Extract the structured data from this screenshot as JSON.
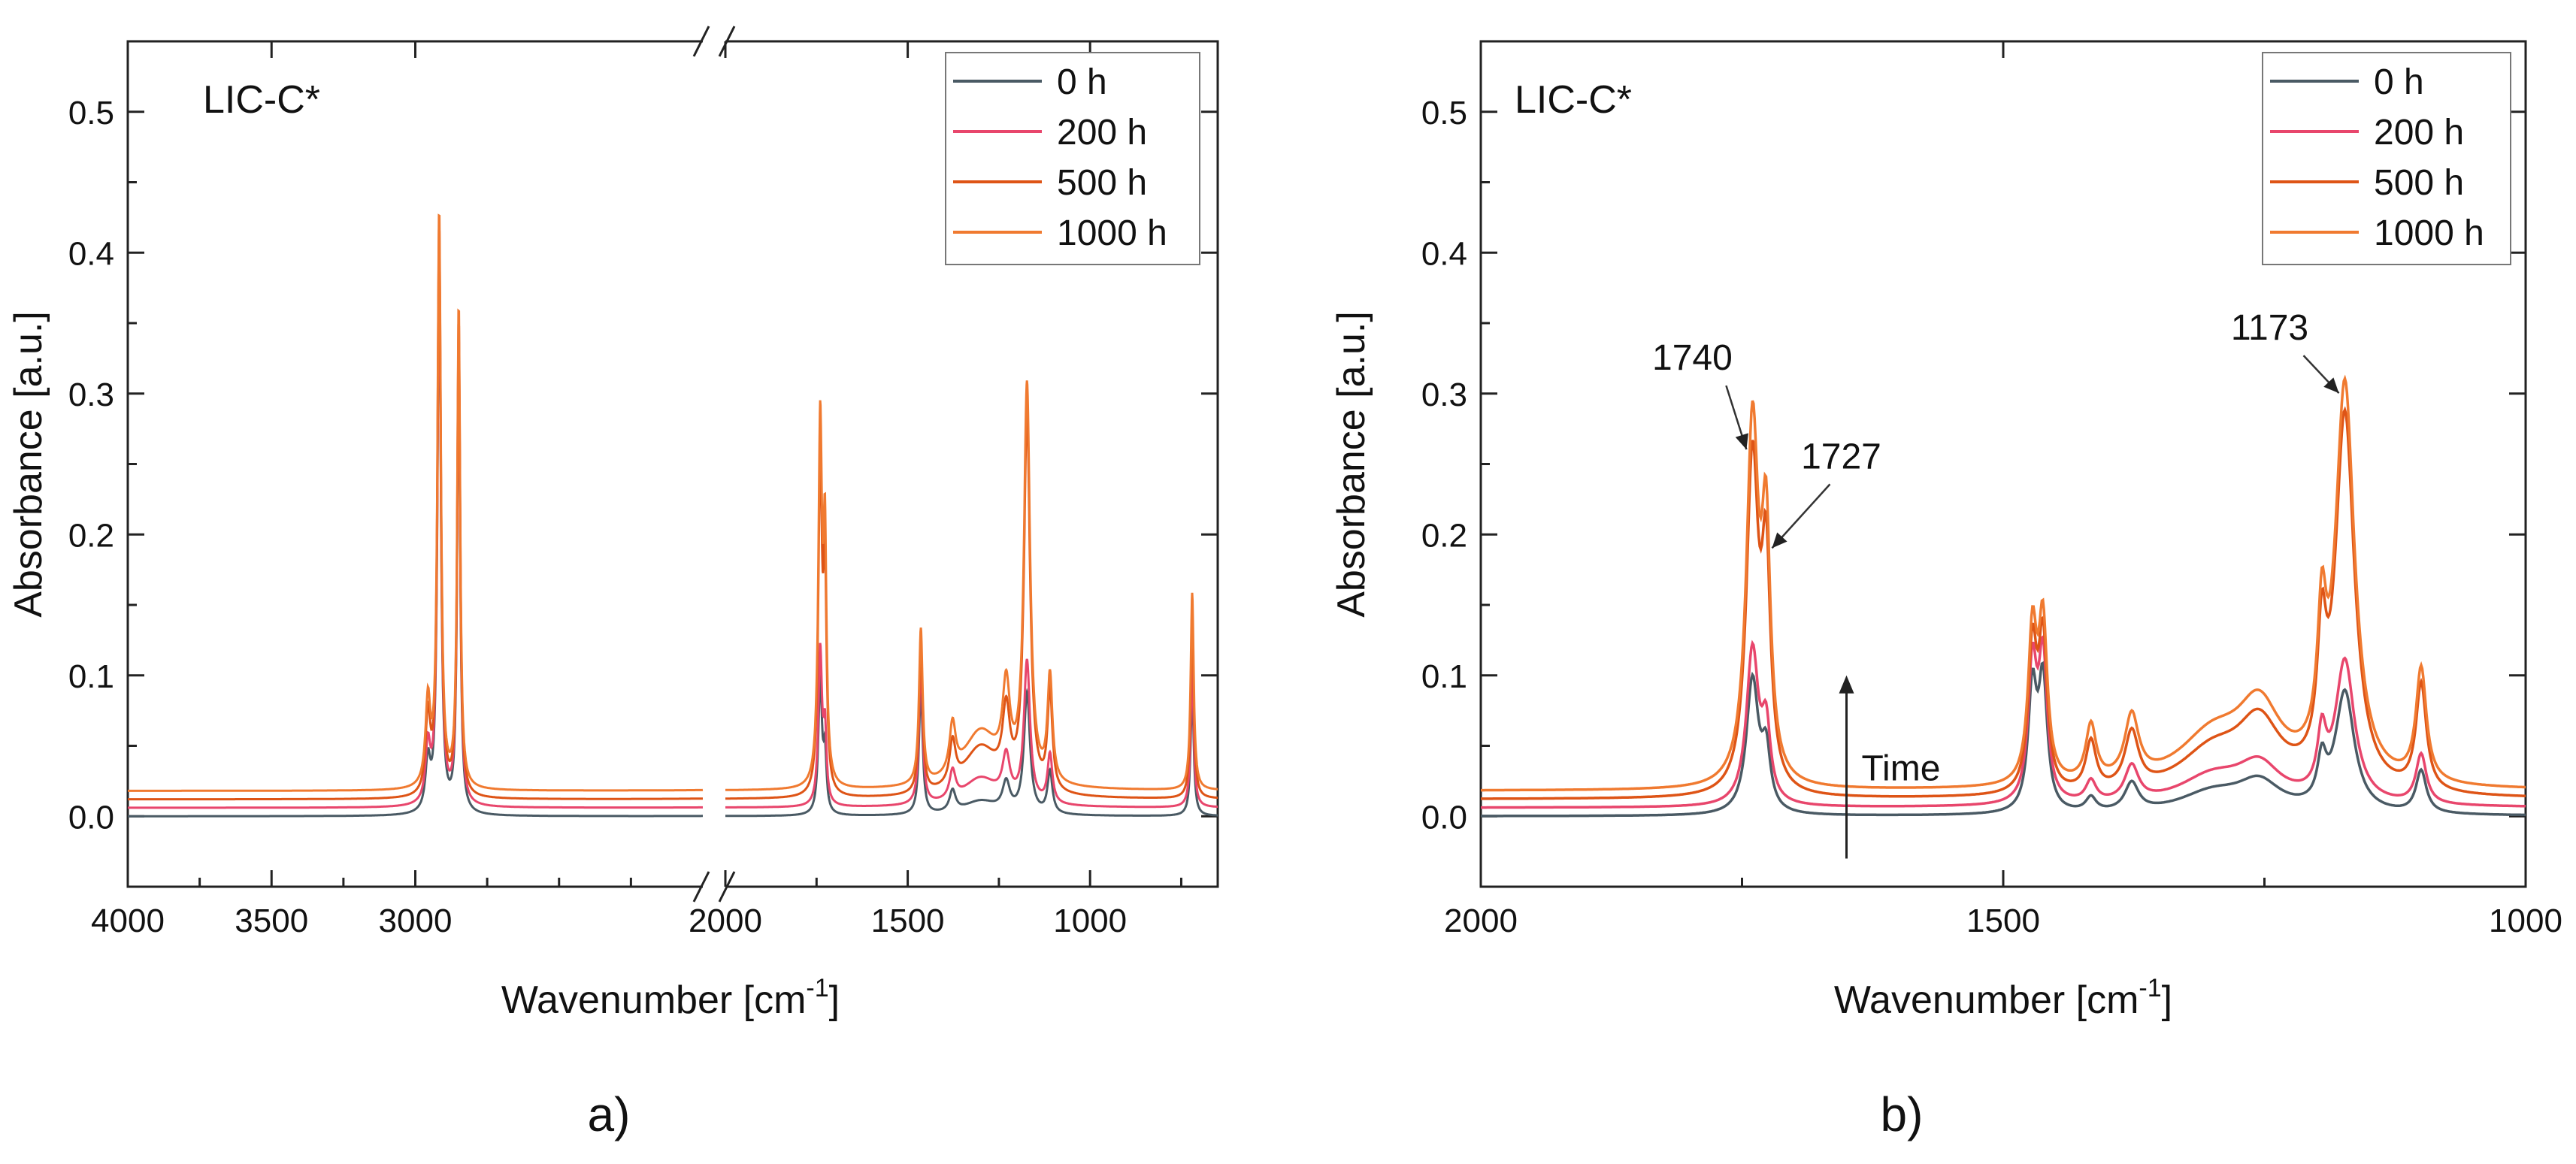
{
  "figure": {
    "panels": [
      {
        "id": "a",
        "caption": "a)"
      },
      {
        "id": "b",
        "caption": "b)"
      }
    ]
  },
  "legend": {
    "entries": [
      {
        "label": "0 h",
        "color": "#4a5a64"
      },
      {
        "label": "200 h",
        "color": "#e8466c"
      },
      {
        "label": "500 h",
        "color": "#de5416"
      },
      {
        "label": "1000 h",
        "color": "#f07a30"
      }
    ]
  },
  "chart_data": [
    {
      "type": "line",
      "panel": "a",
      "title": "LIC-C*",
      "xlabel_main": "Wavenumber [cm",
      "xlabel_sup": "-1",
      "xlabel_end": "]",
      "ylabel": "Absorbance [a.u.]",
      "xlim": [
        4000,
        650
      ],
      "axis_break": [
        2000,
        2000
      ],
      "ylim": [
        -0.05,
        0.55
      ],
      "xticks": [
        4000,
        3500,
        3000,
        2000,
        1500,
        1000
      ],
      "xtick_labels": [
        "4000",
        "3500",
        "3000",
        "2000",
        "1500",
        "1000"
      ],
      "yticks": [
        0.0,
        0.1,
        0.2,
        0.3,
        0.4,
        0.5
      ],
      "ytick_labels": [
        "0.0",
        "0.1",
        "0.2",
        "0.3",
        "0.4",
        "0.5"
      ],
      "series_names": [
        "0 h",
        "200 h",
        "500 h",
        "1000 h"
      ],
      "baseline_offsets": [
        0.0,
        0.006,
        0.012,
        0.018
      ],
      "peaks": [
        {
          "x": 2956,
          "w": 10,
          "heights": [
            0.035,
            0.04,
            0.055,
            0.06
          ]
        },
        {
          "x": 2917,
          "w": 7,
          "heights": [
            0.39,
            0.395,
            0.405,
            0.41
          ]
        },
        {
          "x": 2849,
          "w": 6,
          "heights": [
            0.33,
            0.335,
            0.34,
            0.345
          ]
        },
        {
          "x": 1740,
          "w": 6,
          "heights": [
            0.095,
            0.11,
            0.235,
            0.255
          ]
        },
        {
          "x": 1727,
          "w": 5,
          "heights": [
            0.04,
            0.05,
            0.15,
            0.165
          ]
        },
        {
          "x": 1464,
          "w": 6,
          "heights": [
            0.09,
            0.1,
            0.105,
            0.11
          ]
        },
        {
          "x": 1377,
          "w": 10,
          "heights": [
            0.015,
            0.02,
            0.03,
            0.035
          ]
        },
        {
          "x": 1300,
          "w": 60,
          "heights": [
            0.01,
            0.02,
            0.035,
            0.04
          ]
        },
        {
          "x": 1230,
          "w": 12,
          "heights": [
            0.02,
            0.03,
            0.05,
            0.06
          ]
        },
        {
          "x": 1173,
          "w": 10,
          "heights": [
            0.085,
            0.1,
            0.265,
            0.28
          ]
        },
        {
          "x": 1110,
          "w": 8,
          "heights": [
            0.03,
            0.035,
            0.07,
            0.075
          ]
        },
        {
          "x": 720,
          "w": 5,
          "heights": [
            0.09,
            0.1,
            0.13,
            0.14
          ]
        }
      ]
    },
    {
      "type": "line",
      "panel": "b",
      "title": "LIC-C*",
      "xlabel_main": "Wavenumber [cm",
      "xlabel_sup": "-1",
      "xlabel_end": "]",
      "ylabel": "Absorbance [a.u.]",
      "xlim": [
        2000,
        1000
      ],
      "ylim": [
        -0.05,
        0.55
      ],
      "xticks": [
        2000,
        1500,
        1000
      ],
      "xtick_labels": [
        "2000",
        "1500",
        "1000"
      ],
      "yticks": [
        0.0,
        0.1,
        0.2,
        0.3,
        0.4,
        0.5
      ],
      "ytick_labels": [
        "0.0",
        "0.1",
        "0.2",
        "0.3",
        "0.4",
        "0.5"
      ],
      "series_names": [
        "0 h",
        "200 h",
        "500 h",
        "1000 h"
      ],
      "baseline_offsets": [
        0.0,
        0.006,
        0.012,
        0.018
      ],
      "peaks": [
        {
          "x": 1740,
          "w": 7,
          "heights": [
            0.095,
            0.11,
            0.235,
            0.255
          ]
        },
        {
          "x": 1727,
          "w": 5,
          "heights": [
            0.04,
            0.05,
            0.15,
            0.165
          ]
        },
        {
          "x": 1472,
          "w": 5,
          "heights": [
            0.085,
            0.095,
            0.1,
            0.105
          ]
        },
        {
          "x": 1462,
          "w": 5,
          "heights": [
            0.09,
            0.1,
            0.105,
            0.11
          ]
        },
        {
          "x": 1416,
          "w": 6,
          "heights": [
            0.01,
            0.015,
            0.035,
            0.04
          ]
        },
        {
          "x": 1377,
          "w": 8,
          "heights": [
            0.02,
            0.025,
            0.04,
            0.045
          ]
        },
        {
          "x": 1300,
          "w": 40,
          "heights": [
            0.015,
            0.02,
            0.03,
            0.035
          ]
        },
        {
          "x": 1255,
          "w": 25,
          "heights": [
            0.02,
            0.025,
            0.045,
            0.05
          ]
        },
        {
          "x": 1195,
          "w": 5,
          "heights": [
            0.03,
            0.04,
            0.085,
            0.09
          ]
        },
        {
          "x": 1173,
          "w": 11,
          "heights": [
            0.085,
            0.1,
            0.265,
            0.28
          ]
        },
        {
          "x": 1100,
          "w": 6,
          "heights": [
            0.03,
            0.035,
            0.075,
            0.08
          ]
        }
      ],
      "annotations": [
        {
          "text": "1740",
          "x": 1740,
          "y": 0.255
        },
        {
          "text": "1727",
          "x": 1727,
          "y": 0.185
        },
        {
          "text": "1173",
          "x": 1173,
          "y": 0.295
        }
      ],
      "arrow_label": "Time",
      "arrow_from": [
        1650,
        -0.03
      ],
      "arrow_to": [
        1650,
        0.1
      ]
    }
  ]
}
